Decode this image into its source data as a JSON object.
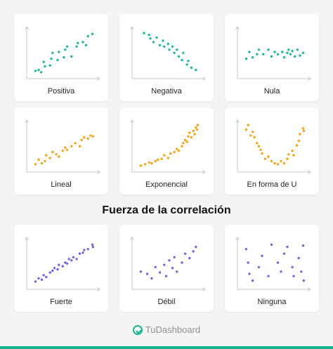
{
  "section_title": "Fuerza de la correlación",
  "brand": {
    "name": "TuDashboard",
    "logo_icon": "tudashboard-logo-icon"
  },
  "colors": {
    "teal": "#1fb59a",
    "orange": "#f5a21b",
    "purple": "#7563e0",
    "axis": "#c9c9c9"
  },
  "chart_data": [
    {
      "type": "scatter",
      "label": "Positiva",
      "color": "#1fb59a",
      "xlim": [
        0,
        100
      ],
      "ylim": [
        0,
        100
      ],
      "points": [
        [
          5,
          8
        ],
        [
          10,
          10
        ],
        [
          14,
          5
        ],
        [
          20,
          18
        ],
        [
          18,
          28
        ],
        [
          28,
          20
        ],
        [
          30,
          35
        ],
        [
          32,
          48
        ],
        [
          40,
          32
        ],
        [
          42,
          50
        ],
        [
          50,
          38
        ],
        [
          52,
          55
        ],
        [
          55,
          62
        ],
        [
          62,
          40
        ],
        [
          70,
          62
        ],
        [
          72,
          70
        ],
        [
          80,
          72
        ],
        [
          88,
          85
        ],
        [
          85,
          65
        ],
        [
          95,
          90
        ]
      ]
    },
    {
      "type": "scatter",
      "label": "Negativa",
      "color": "#1fb59a",
      "xlim": [
        0,
        100
      ],
      "ylim": [
        0,
        100
      ],
      "points": [
        [
          10,
          92
        ],
        [
          18,
          88
        ],
        [
          20,
          80
        ],
        [
          25,
          72
        ],
        [
          30,
          82
        ],
        [
          35,
          65
        ],
        [
          40,
          75
        ],
        [
          42,
          62
        ],
        [
          48,
          68
        ],
        [
          50,
          55
        ],
        [
          55,
          62
        ],
        [
          58,
          48
        ],
        [
          62,
          55
        ],
        [
          65,
          40
        ],
        [
          70,
          32
        ],
        [
          72,
          48
        ],
        [
          78,
          22
        ],
        [
          80,
          30
        ],
        [
          85,
          15
        ],
        [
          92,
          10
        ]
      ]
    },
    {
      "type": "scatter",
      "label": "Nula",
      "color": "#1fb59a",
      "xlim": [
        0,
        100
      ],
      "ylim": [
        0,
        100
      ],
      "points": [
        [
          5,
          35
        ],
        [
          10,
          50
        ],
        [
          15,
          38
        ],
        [
          22,
          45
        ],
        [
          25,
          55
        ],
        [
          32,
          45
        ],
        [
          40,
          55
        ],
        [
          45,
          40
        ],
        [
          50,
          50
        ],
        [
          55,
          45
        ],
        [
          62,
          50
        ],
        [
          65,
          38
        ],
        [
          70,
          48
        ],
        [
          72,
          55
        ],
        [
          75,
          45
        ],
        [
          78,
          52
        ],
        [
          82,
          40
        ],
        [
          86,
          55
        ],
        [
          90,
          42
        ],
        [
          95,
          48
        ]
      ]
    },
    {
      "type": "scatter",
      "label": "Lineal",
      "color": "#f5a21b",
      "xlim": [
        0,
        100
      ],
      "ylim": [
        0,
        100
      ],
      "points": [
        [
          5,
          8
        ],
        [
          10,
          18
        ],
        [
          15,
          10
        ],
        [
          20,
          15
        ],
        [
          22,
          28
        ],
        [
          28,
          22
        ],
        [
          32,
          35
        ],
        [
          38,
          30
        ],
        [
          42,
          25
        ],
        [
          48,
          38
        ],
        [
          52,
          45
        ],
        [
          55,
          40
        ],
        [
          62,
          48
        ],
        [
          68,
          55
        ],
        [
          75,
          48
        ],
        [
          78,
          62
        ],
        [
          82,
          68
        ],
        [
          88,
          65
        ],
        [
          92,
          72
        ],
        [
          96,
          70
        ]
      ]
    },
    {
      "type": "scatter",
      "label": "Exponencial",
      "color": "#f5a21b",
      "xlim": [
        0,
        100
      ],
      "ylim": [
        0,
        100
      ],
      "points": [
        [
          5,
          5
        ],
        [
          12,
          8
        ],
        [
          18,
          12
        ],
        [
          22,
          10
        ],
        [
          28,
          15
        ],
        [
          32,
          18
        ],
        [
          38,
          20
        ],
        [
          42,
          28
        ],
        [
          48,
          22
        ],
        [
          52,
          32
        ],
        [
          58,
          35
        ],
        [
          62,
          42
        ],
        [
          65,
          38
        ],
        [
          70,
          48
        ],
        [
          72,
          55
        ],
        [
          75,
          62
        ],
        [
          78,
          58
        ],
        [
          80,
          70
        ],
        [
          82,
          78
        ],
        [
          85,
          68
        ],
        [
          88,
          82
        ],
        [
          90,
          75
        ],
        [
          92,
          90
        ],
        [
          94,
          85
        ],
        [
          95,
          95
        ]
      ]
    },
    {
      "type": "scatter",
      "label": "En forma de U",
      "color": "#f5a21b",
      "xlim": [
        0,
        100
      ],
      "ylim": [
        0,
        100
      ],
      "points": [
        [
          5,
          85
        ],
        [
          8,
          95
        ],
        [
          12,
          72
        ],
        [
          15,
          80
        ],
        [
          18,
          68
        ],
        [
          22,
          55
        ],
        [
          25,
          48
        ],
        [
          28,
          40
        ],
        [
          30,
          32
        ],
        [
          35,
          20
        ],
        [
          40,
          25
        ],
        [
          45,
          15
        ],
        [
          50,
          10
        ],
        [
          55,
          8
        ],
        [
          60,
          15
        ],
        [
          65,
          10
        ],
        [
          70,
          20
        ],
        [
          72,
          30
        ],
        [
          78,
          38
        ],
        [
          80,
          28
        ],
        [
          85,
          50
        ],
        [
          88,
          60
        ],
        [
          90,
          75
        ],
        [
          95,
          88
        ],
        [
          96,
          82
        ]
      ]
    },
    {
      "type": "scatter",
      "label": "Fuerte",
      "color": "#7563e0",
      "xlim": [
        0,
        100
      ],
      "ylim": [
        0,
        100
      ],
      "points": [
        [
          5,
          8
        ],
        [
          10,
          15
        ],
        [
          15,
          12
        ],
        [
          18,
          22
        ],
        [
          22,
          18
        ],
        [
          28,
          28
        ],
        [
          32,
          32
        ],
        [
          35,
          38
        ],
        [
          40,
          35
        ],
        [
          42,
          45
        ],
        [
          48,
          42
        ],
        [
          52,
          50
        ],
        [
          55,
          48
        ],
        [
          58,
          58
        ],
        [
          62,
          55
        ],
        [
          65,
          62
        ],
        [
          70,
          58
        ],
        [
          75,
          70
        ],
        [
          80,
          72
        ],
        [
          82,
          78
        ],
        [
          88,
          80
        ],
        [
          95,
          90
        ],
        [
          96,
          85
        ]
      ]
    },
    {
      "type": "scatter",
      "label": "Débil",
      "color": "#7563e0",
      "xlim": [
        0,
        100
      ],
      "ylim": [
        0,
        100
      ],
      "points": [
        [
          5,
          30
        ],
        [
          15,
          25
        ],
        [
          22,
          15
        ],
        [
          28,
          40
        ],
        [
          35,
          28
        ],
        [
          42,
          45
        ],
        [
          45,
          20
        ],
        [
          50,
          55
        ],
        [
          55,
          38
        ],
        [
          58,
          62
        ],
        [
          62,
          30
        ],
        [
          70,
          50
        ],
        [
          75,
          70
        ],
        [
          82,
          60
        ],
        [
          88,
          75
        ],
        [
          92,
          85
        ]
      ]
    },
    {
      "type": "scatter",
      "label": "Ninguna",
      "color": "#7563e0",
      "xlim": [
        0,
        100
      ],
      "ylim": [
        0,
        100
      ],
      "points": [
        [
          5,
          80
        ],
        [
          8,
          50
        ],
        [
          10,
          25
        ],
        [
          15,
          10
        ],
        [
          25,
          40
        ],
        [
          30,
          65
        ],
        [
          40,
          20
        ],
        [
          45,
          90
        ],
        [
          55,
          50
        ],
        [
          60,
          30
        ],
        [
          65,
          70
        ],
        [
          70,
          85
        ],
        [
          78,
          40
        ],
        [
          80,
          20
        ],
        [
          88,
          60
        ],
        [
          92,
          30
        ],
        [
          95,
          88
        ],
        [
          96,
          10
        ]
      ]
    }
  ]
}
